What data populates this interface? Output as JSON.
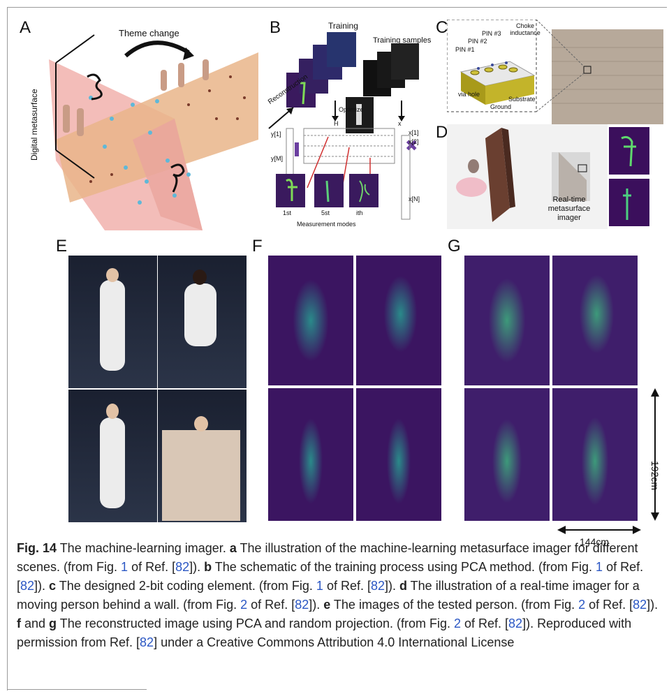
{
  "panels": {
    "a": {
      "label": "A",
      "theme_change": "Theme change",
      "digital_metasurface": "Digital metasurface"
    },
    "b": {
      "label": "B",
      "training": "Training",
      "training_samples": "Training samples",
      "reconstruction": "Reconstruction",
      "optimize": "Optimize",
      "h": "H",
      "y1": "y[1]",
      "ym": "y[M]",
      "x": "x",
      "x1": "x[1]",
      "x2": "x[2]",
      "xn": "x[N]",
      "mode1": "1st",
      "mode5": "5st",
      "modei": "ith",
      "measurement_modes": "Measurement modes"
    },
    "c": {
      "label": "C",
      "pin1": "PIN #1",
      "pin2": "PIN #2",
      "pin3": "PIN #3",
      "choke": "Choke inductance",
      "via": "via hole",
      "ground": "Ground",
      "substrate": "Substrate"
    },
    "d": {
      "label": "D",
      "imager": "Real-time metasurface imager"
    },
    "e": {
      "label": "E"
    },
    "f": {
      "label": "F"
    },
    "g": {
      "label": "G"
    }
  },
  "dimensions": {
    "height": "192cm",
    "width": "144cm"
  },
  "caption": {
    "fig": "Fig. 14",
    "title": " The machine-learning imager. ",
    "parts": [
      {
        "letter": "a",
        "text": " The illustration of the machine-learning metasurface imager for different scenes. (from Fig. ",
        "fig": "1",
        "mid": " of Ref. [",
        "ref": "82",
        "end": "]). "
      },
      {
        "letter": "b",
        "text": " The schematic of the training process using PCA method. (from Fig. ",
        "fig": "1",
        "mid": " of Ref. [",
        "ref": "82",
        "end": "]). "
      },
      {
        "letter": "c",
        "text": " The designed 2-bit coding element. (from Fig. ",
        "fig": "1",
        "mid": " of Ref. [",
        "ref": "82",
        "end": "]). "
      },
      {
        "letter": "d",
        "text": " The illustration of a real-time imager for a moving person behind a wall. (from Fig. ",
        "fig": "2",
        "mid": " of Ref. [",
        "ref": "82",
        "end": "]). "
      },
      {
        "letter": "e",
        "text": " The images of the tested person. (from Fig. ",
        "fig": "2",
        "mid": " of Ref. [",
        "ref": "82",
        "end": "]). "
      },
      {
        "letter": "f",
        "text": " and ",
        "fig": "",
        "mid": "",
        "ref": "",
        "end": ""
      },
      {
        "letter": "g",
        "text": " The reconstructed image using PCA and random projection. (from Fig. ",
        "fig": "2",
        "mid": " of Ref. [",
        "ref": "82",
        "end": "]). "
      }
    ],
    "tail_a": "Reproduced with permission from Ref. [",
    "tail_ref": "82",
    "tail_b": "] under a Creative Commons Attribution 4.0 International License"
  },
  "colors": {
    "viridis_dark": "#440154",
    "viridis_mid": "#21918c",
    "viridis_bright": "#fde725",
    "ref_link": "#2b57c4"
  }
}
